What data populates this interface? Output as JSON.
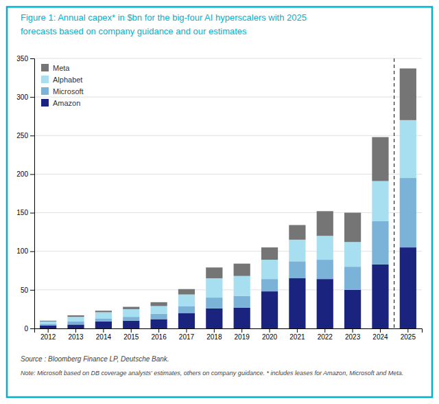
{
  "chart_data": {
    "type": "bar",
    "stacked": true,
    "title": "Figure 1: Annual capex* in $bn for the big-four AI hyperscalers with 2025",
    "subtitle": "forecasts based on company guidance and our estimates",
    "annotations": [
      "Source : Bloomberg Finance LP, Deutsche Bank.",
      "Note: Microsoft based on DB coverage analysts' estimates, others on company guidance.  * includes leases for Amazon, Microsoft and Meta."
    ],
    "categories": [
      "2012",
      "2013",
      "2014",
      "2015",
      "2016",
      "2017",
      "2018",
      "2019",
      "2020",
      "2021",
      "2022",
      "2023",
      "2024",
      "2025"
    ],
    "series": [
      {
        "name": "Amazon",
        "color": "#1a237e",
        "values": [
          4,
          5,
          9,
          10,
          12,
          20,
          26,
          27,
          48,
          65,
          64,
          50,
          83,
          105
        ]
      },
      {
        "name": "Microsoft",
        "color": "#7bb3d8",
        "values": [
          2,
          4,
          4,
          5,
          7,
          9,
          14,
          15,
          16,
          22,
          25,
          30,
          56,
          90
        ]
      },
      {
        "name": "Alphabet",
        "color": "#a8dff0",
        "values": [
          3,
          6,
          8,
          10,
          10,
          15,
          25,
          26,
          25,
          28,
          31,
          32,
          52,
          75
        ]
      },
      {
        "name": "Meta",
        "color": "#757575",
        "values": [
          1,
          2,
          2,
          3,
          5,
          7,
          14,
          16,
          16,
          19,
          32,
          38,
          57,
          67
        ]
      }
    ],
    "ylim": [
      0,
      350
    ],
    "yticks": [
      0,
      50,
      100,
      150,
      200,
      250,
      300,
      350
    ],
    "grid": true,
    "legend": "upper left"
  }
}
